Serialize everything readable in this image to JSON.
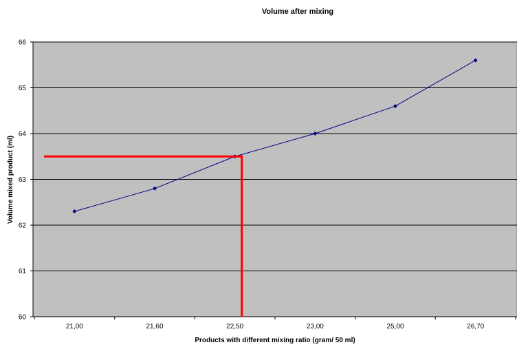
{
  "chart_data": {
    "type": "line",
    "title": "Volume after mixing",
    "xlabel": "Products with different mixing ratio (gram/ 50 ml)",
    "ylabel": "Volume mixed product (ml)",
    "categories": [
      "21,00",
      "21,60",
      "22,50",
      "23,00",
      "25,00",
      "26,70"
    ],
    "series": [
      {
        "values": [
          62.3,
          62.8,
          63.5,
          64.0,
          64.6,
          65.6
        ]
      }
    ],
    "ylim": [
      60,
      66
    ],
    "yticks": [
      60,
      61,
      62,
      63,
      64,
      65,
      66
    ],
    "grid": true,
    "legend": "none",
    "annotation": {
      "type": "reference-lines",
      "y_value": 63.5,
      "x_category": "22,50",
      "color": "#ff0000"
    },
    "colors": {
      "plot_background": "#c0c0c0",
      "series_line": "#000080",
      "grid": "#000000"
    }
  }
}
